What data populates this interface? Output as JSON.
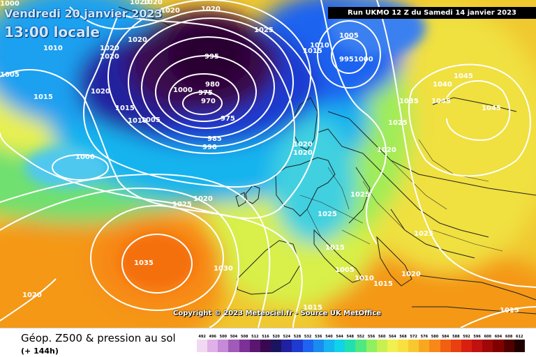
{
  "header": {
    "title_line1": "Vendredi 20 janvier 2023",
    "title_line2": "13:00 locale",
    "run_info": "Run UKMO 12 Z du Samedi 14 janvier 2023"
  },
  "copyright": "Copyright © 2023 Meteociel.fr - Source UK MetOffice",
  "legend": {
    "title": "Géop. Z500 & pression au sol",
    "subtitle": "(+ 144h)",
    "scale_values": [
      "492",
      "496",
      "500",
      "504",
      "508",
      "512",
      "516",
      "520",
      "524",
      "528",
      "532",
      "536",
      "540",
      "544",
      "548",
      "552",
      "556",
      "560",
      "564",
      "568",
      "572",
      "576",
      "580",
      "584",
      "588",
      "592",
      "596",
      "600",
      "604",
      "608",
      "612"
    ],
    "scale_colors": [
      "#f2d9f2",
      "#e0b0e8",
      "#c58ad8",
      "#a05ab8",
      "#7d3098",
      "#5a1670",
      "#3a0850",
      "#1a1460",
      "#2020a0",
      "#1e3ad0",
      "#1e64f0",
      "#1a8cf0",
      "#16b4f0",
      "#10d2e8",
      "#20e0b0",
      "#50e880",
      "#90f060",
      "#c8f050",
      "#f0f050",
      "#f8e040",
      "#f8c830",
      "#f8a820",
      "#f88818",
      "#f06010",
      "#e84010",
      "#d82010",
      "#c01010",
      "#a00808",
      "#800000",
      "#500000",
      "#200000"
    ]
  },
  "map_labels": [
    {
      "text": "1000"
    },
    {
      "text": "1020"
    },
    {
      "text": "1020"
    },
    {
      "text": "1020"
    },
    {
      "text": "1020"
    },
    {
      "text": "1010"
    },
    {
      "text": "1020"
    },
    {
      "text": "1020"
    },
    {
      "text": "1025"
    },
    {
      "text": "1010"
    },
    {
      "text": "1005"
    },
    {
      "text": "1015"
    },
    {
      "text": "1005"
    },
    {
      "text": "9951000"
    },
    {
      "text": "1020"
    },
    {
      "text": "1045"
    },
    {
      "text": "1015"
    },
    {
      "text": "1020"
    },
    {
      "text": "995"
    },
    {
      "text": "1040"
    },
    {
      "text": "980"
    },
    {
      "text": "1000"
    },
    {
      "text": "975"
    },
    {
      "text": "970"
    },
    {
      "text": "1035"
    },
    {
      "text": "1045"
    },
    {
      "text": "1015"
    },
    {
      "text": "1045"
    },
    {
      "text": "1010"
    },
    {
      "text": "1005"
    },
    {
      "text": "975"
    },
    {
      "text": "1025"
    },
    {
      "text": "985"
    },
    {
      "text": "990"
    },
    {
      "text": "1020"
    },
    {
      "text": "1020"
    },
    {
      "text": "1020"
    },
    {
      "text": "1000"
    },
    {
      "text": "1025"
    },
    {
      "text": "1020"
    },
    {
      "text": "1025"
    },
    {
      "text": "1025"
    },
    {
      "text": "1025"
    },
    {
      "text": "1015"
    },
    {
      "text": "1035"
    },
    {
      "text": "1030"
    },
    {
      "text": "1005"
    },
    {
      "text": "1010"
    },
    {
      "text": "1015"
    },
    {
      "text": "1020"
    },
    {
      "text": "1020"
    },
    {
      "text": "1015"
    },
    {
      "text": "1015"
    }
  ]
}
